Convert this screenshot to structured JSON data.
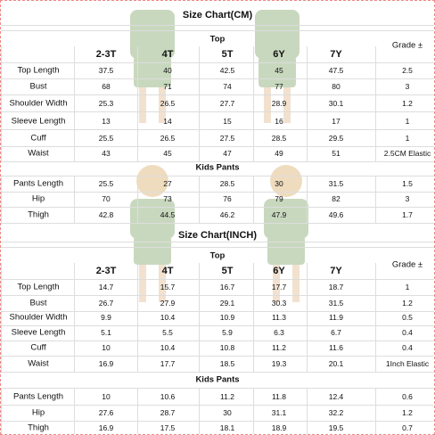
{
  "tables": [
    {
      "title": "Size Chart(CM)",
      "top_label": "Top",
      "columns": [
        "2-3T",
        "4T",
        "5T",
        "6Y",
        "7Y"
      ],
      "grade_header": "Grade ±",
      "top_rows": [
        {
          "label": "Top Length",
          "values": [
            "37.5",
            "40",
            "42.5",
            "45",
            "47.5",
            "2.5"
          ]
        },
        {
          "label": "Bust",
          "values": [
            "68",
            "71",
            "74",
            "77",
            "80",
            "3"
          ]
        },
        {
          "label": "Shoulder Width",
          "values": [
            "25.3",
            "26.5",
            "27.7",
            "28.9",
            "30.1",
            "1.2"
          ]
        },
        {
          "label": "Sleeve Length",
          "values": [
            "13",
            "14",
            "15",
            "16",
            "17",
            "1"
          ]
        },
        {
          "label": "Cuff",
          "values": [
            "25.5",
            "26.5",
            "27.5",
            "28.5",
            "29.5",
            "1"
          ]
        },
        {
          "label": "Waist",
          "values": [
            "43",
            "45",
            "47",
            "49",
            "51",
            "2.5CM Elastic"
          ]
        }
      ],
      "pants_label": "Kids Pants",
      "pants_rows": [
        {
          "label": "Pants Length",
          "values": [
            "25.5",
            "27",
            "28.5",
            "30",
            "31.5",
            "1.5"
          ]
        },
        {
          "label": "Hip",
          "values": [
            "70",
            "73",
            "76",
            "79",
            "82",
            "3"
          ]
        },
        {
          "label": "Thigh",
          "values": [
            "42.8",
            "44.5",
            "46.2",
            "47.9",
            "49.6",
            "1.7"
          ]
        }
      ]
    },
    {
      "title": "Size Chart(INCH)",
      "top_label": "Top",
      "columns": [
        "2-3T",
        "4T",
        "5T",
        "6Y",
        "7Y"
      ],
      "grade_header": "Grade ±",
      "top_rows": [
        {
          "label": "Top Length",
          "values": [
            "14.7",
            "15.7",
            "16.7",
            "17.7",
            "18.7",
            "1"
          ]
        },
        {
          "label": "Bust",
          "values": [
            "26.7",
            "27.9",
            "29.1",
            "30.3",
            "31.5",
            "1.2"
          ]
        },
        {
          "label": "Shoulder Width",
          "values": [
            "9.9",
            "10.4",
            "10.9",
            "11.3",
            "11.9",
            "0.5"
          ]
        },
        {
          "label": "Sleeve Length",
          "values": [
            "5.1",
            "5.5",
            "5.9",
            "6.3",
            "6.7",
            "0.4"
          ]
        },
        {
          "label": "Cuff",
          "values": [
            "10",
            "10.4",
            "10.8",
            "11.2",
            "11.6",
            "0.4"
          ]
        },
        {
          "label": "Waist",
          "values": [
            "16.9",
            "17.7",
            "18.5",
            "19.3",
            "20.1",
            "1Inch Elastic"
          ]
        }
      ],
      "pants_label": "Kids Pants",
      "pants_rows": [
        {
          "label": "Pants Length",
          "values": [
            "10",
            "10.6",
            "11.2",
            "11.8",
            "12.4",
            "0.6"
          ]
        },
        {
          "label": "Hip",
          "values": [
            "27.6",
            "28.7",
            "30",
            "31.1",
            "32.2",
            "1.2"
          ]
        },
        {
          "label": "Thigh",
          "values": [
            "16.9",
            "17.5",
            "18.1",
            "18.9",
            "19.5",
            "0.7"
          ]
        }
      ]
    }
  ]
}
